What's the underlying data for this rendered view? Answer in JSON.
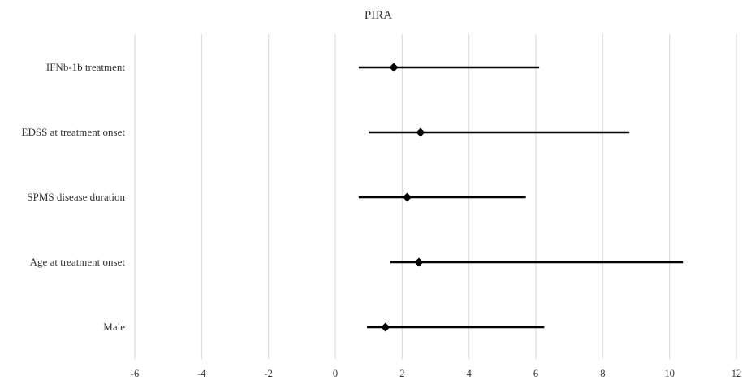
{
  "chart_data": {
    "type": "forest",
    "title": "PIRA",
    "xlabel": "",
    "ylabel": "",
    "xlim": [
      -6,
      12
    ],
    "xticks": [
      -6,
      -4,
      -2,
      0,
      2,
      4,
      6,
      8,
      10,
      12
    ],
    "grid": true,
    "categories": [
      "IFNb-1b treatment",
      "EDSS at treatment onset",
      "SPMS disease duration",
      "Age at treatment onset",
      "Male"
    ],
    "estimates": [
      1.75,
      2.55,
      2.15,
      2.5,
      1.5
    ],
    "lower": [
      0.7,
      1.0,
      0.7,
      1.65,
      0.95
    ],
    "upper": [
      6.1,
      8.8,
      5.7,
      10.4,
      6.25
    ],
    "colors": {
      "line": "#000000",
      "marker": "#000000",
      "grid": "#d6d6d6"
    }
  }
}
